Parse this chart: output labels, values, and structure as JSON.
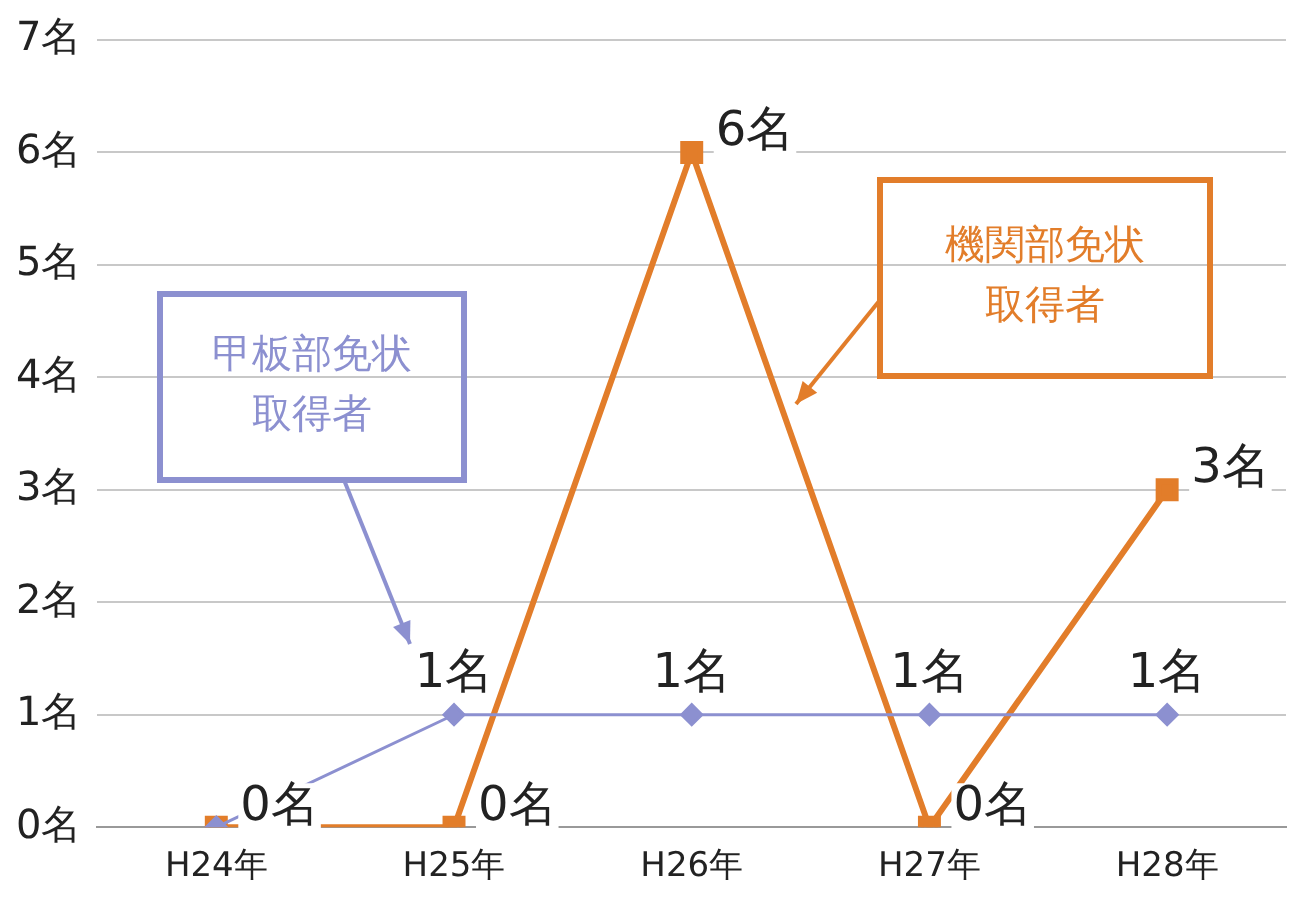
{
  "chart_data": {
    "type": "line",
    "categories": [
      "H24年",
      "H25年",
      "H26年",
      "H27年",
      "H28年"
    ],
    "series": [
      {
        "name": "甲板部免状取得者",
        "color": "#8c90d0",
        "marker": "diamond",
        "values": [
          0,
          1,
          1,
          1,
          1
        ],
        "value_labels": [
          null,
          "1名",
          "1名",
          "1名",
          "1名"
        ]
      },
      {
        "name": "機関部免状取得者",
        "color": "#e27d2a",
        "marker": "square",
        "values": [
          0,
          0,
          6,
          0,
          3
        ],
        "value_labels": [
          "0名",
          "0名",
          "6名",
          "0名",
          "3名"
        ]
      }
    ],
    "ylim": [
      0,
      7
    ],
    "yticks": [
      {
        "value": 0,
        "label": "0名"
      },
      {
        "value": 1,
        "label": "1名"
      },
      {
        "value": 2,
        "label": "2名"
      },
      {
        "value": 3,
        "label": "3名"
      },
      {
        "value": 4,
        "label": "4名"
      },
      {
        "value": 5,
        "label": "5名"
      },
      {
        "value": 6,
        "label": "6名"
      },
      {
        "value": 7,
        "label": "7名"
      }
    ],
    "grid": "y",
    "legend": false,
    "line_style": "solid"
  }
}
